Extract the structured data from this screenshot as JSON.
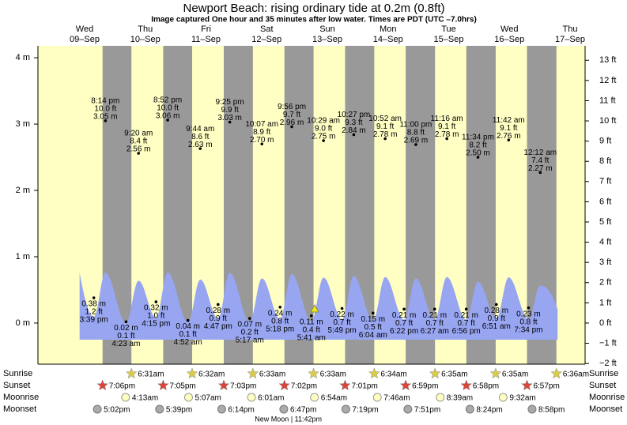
{
  "chart_data": {
    "type": "tide",
    "title": "Newport Beach: rising  ordinary tide at 0.2m (0.8ft)",
    "subtitle": "Image captured One hour and 35 minutes after low water. Times are PDT (UTC –7.0hrs)",
    "ylim": [
      -0.62,
      4.18
    ],
    "yticks": [
      {
        "value": 0,
        "label": "0 m"
      },
      {
        "value": 1,
        "label": "1 m"
      },
      {
        "value": 2,
        "label": "2 m"
      },
      {
        "value": 3,
        "label": "3 m"
      },
      {
        "value": 4,
        "label": "4 m"
      }
    ],
    "y2lim": [
      -2.034,
      13.714
    ],
    "y2ticks": [
      {
        "value": -2,
        "label": "−2 ft"
      },
      {
        "value": -1,
        "label": "−1 ft"
      },
      {
        "value": 0,
        "label": "0 ft"
      },
      {
        "value": 1,
        "label": "1 ft"
      },
      {
        "value": 2,
        "label": "2 ft"
      },
      {
        "value": 3,
        "label": "3 ft"
      },
      {
        "value": 4,
        "label": "4 ft"
      },
      {
        "value": 5,
        "label": "5 ft"
      },
      {
        "value": 6,
        "label": "6 ft"
      },
      {
        "value": 7,
        "label": "7 ft"
      },
      {
        "value": 8,
        "label": "8 ft"
      },
      {
        "value": 9,
        "label": "9 ft"
      },
      {
        "value": 10,
        "label": "10 ft"
      },
      {
        "value": 11,
        "label": "11 ft"
      },
      {
        "value": 12,
        "label": "12 ft"
      },
      {
        "value": 13,
        "label": "13 ft"
      }
    ],
    "row_labels": [
      "Sunrise",
      "Sunset",
      "Moonrise",
      "Moonset"
    ],
    "days": [
      {
        "weekday": "Wed",
        "date": "09–Sep",
        "sunset": "7:06pm",
        "moonset": "5:02pm",
        "tides": [
          {
            "time": "3:39 pm",
            "ft": "1.2 ft",
            "m": 0.38,
            "m_label": "0.38 m"
          },
          {
            "time": "8:14 pm",
            "ft": "10.0 ft",
            "m": 3.05,
            "m_label": "3.05 m"
          }
        ]
      },
      {
        "weekday": "Thu",
        "date": "10–Sep",
        "sunrise": "6:31am",
        "sunset": "7:05pm",
        "moonrise": "4:13am",
        "moonset": "5:39pm",
        "tides": [
          {
            "time": "4:23 am",
            "ft": "0.1 ft",
            "m": 0.02,
            "m_label": "0.02 m"
          },
          {
            "time": "9:20 am",
            "ft": "8.4 ft",
            "m": 2.56,
            "m_label": "2.56 m"
          },
          {
            "time": "4:15 pm",
            "ft": "1.0 ft",
            "m": 0.32,
            "m_label": "0.32 m"
          },
          {
            "time": "8:52 pm",
            "ft": "10.0 ft",
            "m": 3.06,
            "m_label": "3.06 m"
          }
        ]
      },
      {
        "weekday": "Fri",
        "date": "11–Sep",
        "sunrise": "6:32am",
        "sunset": "7:03pm",
        "moonrise": "5:07am",
        "moonset": "6:14pm",
        "tides": [
          {
            "time": "4:52 am",
            "ft": "0.1 ft",
            "m": 0.04,
            "m_label": "0.04 m"
          },
          {
            "time": "9:44 am",
            "ft": "8.6 ft",
            "m": 2.63,
            "m_label": "2.63 m"
          },
          {
            "time": "4:47 pm",
            "ft": "0.9 ft",
            "m": 0.28,
            "m_label": "0.28 m"
          },
          {
            "time": "9:25 pm",
            "ft": "9.9 ft",
            "m": 3.03,
            "m_label": "3.03 m"
          }
        ]
      },
      {
        "weekday": "Sat",
        "date": "12–Sep",
        "sunrise": "6:33am",
        "sunset": "7:02pm",
        "moonrise": "6:01am",
        "moonset": "6:47pm",
        "moon_phase": "New Moon | 11:42pm",
        "tides": [
          {
            "time": "5:17 am",
            "ft": "0.2 ft",
            "m": 0.07,
            "m_label": "0.07 m"
          },
          {
            "time": "10:07 am",
            "ft": "8.9 ft",
            "m": 2.7,
            "m_label": "2.70 m"
          },
          {
            "time": "5:18 pm",
            "ft": "0.8 ft",
            "m": 0.24,
            "m_label": "0.24 m"
          },
          {
            "time": "9:56 pm",
            "ft": "9.7 ft",
            "m": 2.96,
            "m_label": "2.96 m"
          }
        ]
      },
      {
        "weekday": "Sun",
        "date": "13–Sep",
        "sunrise": "6:33am",
        "sunset": "7:01pm",
        "moonrise": "6:54am",
        "moonset": "7:19pm",
        "tides": [
          {
            "time": "5:41 am",
            "ft": "0.4 ft",
            "m": 0.11,
            "m_label": "0.11 m"
          },
          {
            "time": "10:29 am",
            "ft": "9.0 ft",
            "m": 2.75,
            "m_label": "2.75 m"
          },
          {
            "time": "5:49 pm",
            "ft": "0.7 ft",
            "m": 0.22,
            "m_label": "0.22 m"
          },
          {
            "time": "10:27 pm",
            "ft": "9.3 ft",
            "m": 2.84,
            "m_label": "2.84 m"
          }
        ]
      },
      {
        "weekday": "Mon",
        "date": "14–Sep",
        "sunrise": "6:34am",
        "sunset": "6:59pm",
        "moonrise": "7:46am",
        "moonset": "7:51pm",
        "tides": [
          {
            "time": "6:04 am",
            "ft": "0.5 ft",
            "m": 0.15,
            "m_label": "0.15 m"
          },
          {
            "time": "10:52 am",
            "ft": "9.1 ft",
            "m": 2.78,
            "m_label": "2.78 m"
          },
          {
            "time": "6:22 pm",
            "ft": "0.7 ft",
            "m": 0.21,
            "m_label": "0.21 m"
          },
          {
            "time": "11:00 pm",
            "ft": "8.8 ft",
            "m": 2.69,
            "m_label": "2.69 m"
          }
        ]
      },
      {
        "weekday": "Tue",
        "date": "15–Sep",
        "sunrise": "6:35am",
        "sunset": "6:58pm",
        "moonrise": "8:39am",
        "moonset": "8:24pm",
        "tides": [
          {
            "time": "6:27 am",
            "ft": "0.7 ft",
            "m": 0.21,
            "m_label": "0.21 m"
          },
          {
            "time": "11:16 am",
            "ft": "9.1 ft",
            "m": 2.78,
            "m_label": "2.78 m"
          },
          {
            "time": "6:56 pm",
            "ft": "0.7 ft",
            "m": 0.21,
            "m_label": "0.21 m"
          },
          {
            "time": "11:34 pm",
            "ft": "8.2 ft",
            "m": 2.5,
            "m_label": "2.50 m"
          }
        ]
      },
      {
        "weekday": "Wed",
        "date": "16–Sep",
        "sunrise": "6:35am",
        "sunset": "6:57pm",
        "moonrise": "9:32am",
        "moonset": "8:58pm",
        "tides": [
          {
            "time": "6:51 am",
            "ft": "0.9 ft",
            "m": 0.28,
            "m_label": "0.28 m"
          },
          {
            "time": "11:42 am",
            "ft": "9.1 ft",
            "m": 2.76,
            "m_label": "2.76 m"
          },
          {
            "time": "7:34 pm",
            "ft": "0.8 ft",
            "m": 0.23,
            "m_label": "0.23 m"
          }
        ]
      },
      {
        "weekday": "Thu",
        "date": "17–Sep",
        "sunrise": "6:36am",
        "tides": [
          {
            "time": "12:12 am",
            "ft": "7.4 ft",
            "m": 2.27,
            "m_label": "2.27 m"
          }
        ]
      }
    ]
  }
}
